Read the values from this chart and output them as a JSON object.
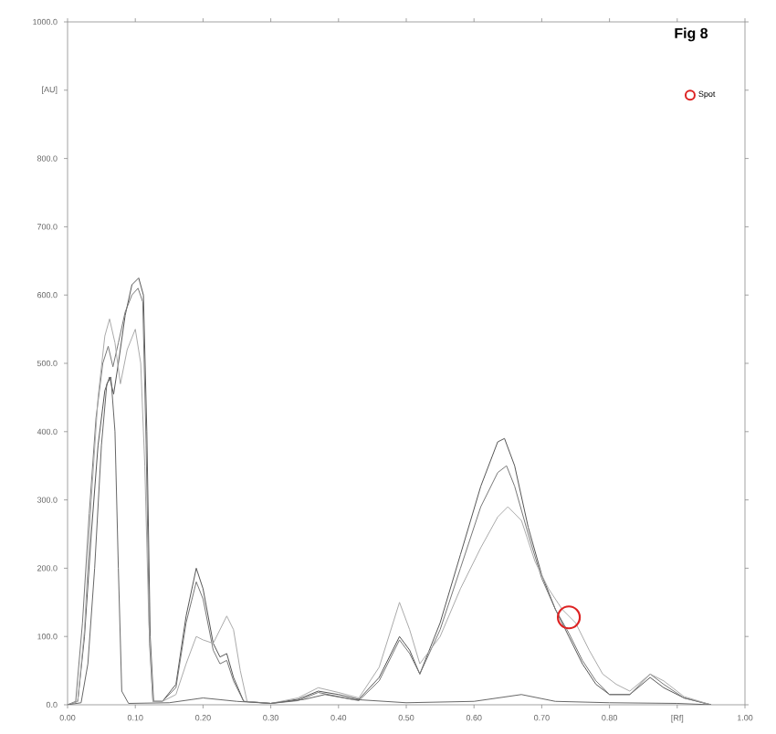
{
  "chart_data": {
    "type": "line",
    "title": "Fig 8",
    "xlim": [
      0,
      1
    ],
    "ylim": [
      0,
      1000
    ],
    "xticks": [
      {
        "value": 0,
        "label": "0.00"
      },
      {
        "value": 0.1,
        "label": "0.10"
      },
      {
        "value": 0.2,
        "label": "0.20"
      },
      {
        "value": 0.3,
        "label": "0.30"
      },
      {
        "value": 0.4,
        "label": "0.40"
      },
      {
        "value": 0.5,
        "label": "0.50"
      },
      {
        "value": 0.6,
        "label": "0.60"
      },
      {
        "value": 0.7,
        "label": "0.70"
      },
      {
        "value": 0.8,
        "label": "0.80"
      },
      {
        "value": 0.9,
        "label": "[Rf]"
      },
      {
        "value": 1,
        "label": "1.00"
      }
    ],
    "yticks": [
      {
        "value": 0,
        "label": "0.0"
      },
      {
        "value": 100,
        "label": "100.0"
      },
      {
        "value": 200,
        "label": "200.0"
      },
      {
        "value": 300,
        "label": "300.0"
      },
      {
        "value": 400,
        "label": "400.0"
      },
      {
        "value": 500,
        "label": "500.0"
      },
      {
        "value": 600,
        "label": "600.0"
      },
      {
        "value": 700,
        "label": "700.0"
      },
      {
        "value": 800,
        "label": "800.0"
      },
      {
        "value": 900,
        "label": "[AU]"
      },
      {
        "value": 1000,
        "label": "1000.0"
      }
    ],
    "legend": "top right",
    "line_style": "solid",
    "series": [
      {
        "color": "#555555",
        "x": [
          0,
          0.015,
          0.025,
          0.035,
          0.045,
          0.055,
          0.062,
          0.068,
          0.075,
          0.085,
          0.095,
          0.105,
          0.112,
          0.117,
          0.122,
          0.127,
          0.14,
          0.16,
          0.175,
          0.19,
          0.2,
          0.215,
          0.225,
          0.235,
          0.245,
          0.26,
          0.3,
          0.34,
          0.37,
          0.4,
          0.43,
          0.46,
          0.49,
          0.505,
          0.52,
          0.55,
          0.58,
          0.61,
          0.635,
          0.645,
          0.66,
          0.68,
          0.7,
          0.72,
          0.74,
          0.76,
          0.78,
          0.8,
          0.83,
          0.86,
          0.88,
          0.91,
          0.95
        ],
        "values": [
          0,
          5,
          100,
          250,
          380,
          460,
          480,
          455,
          500,
          570,
          615,
          625,
          600,
          400,
          100,
          5,
          5,
          30,
          130,
          200,
          170,
          90,
          70,
          75,
          40,
          5,
          2,
          8,
          20,
          15,
          8,
          40,
          100,
          80,
          45,
          120,
          220,
          320,
          385,
          390,
          350,
          260,
          190,
          140,
          100,
          60,
          30,
          15,
          15,
          40,
          25,
          10,
          0
        ]
      },
      {
        "color": "#777777",
        "x": [
          0,
          0.012,
          0.022,
          0.032,
          0.042,
          0.052,
          0.06,
          0.067,
          0.075,
          0.085,
          0.095,
          0.104,
          0.111,
          0.116,
          0.121,
          0.126,
          0.14,
          0.16,
          0.175,
          0.19,
          0.2,
          0.215,
          0.225,
          0.235,
          0.245,
          0.26,
          0.3,
          0.34,
          0.37,
          0.4,
          0.43,
          0.46,
          0.49,
          0.505,
          0.52,
          0.55,
          0.58,
          0.61,
          0.635,
          0.648,
          0.66,
          0.68,
          0.7,
          0.72,
          0.74,
          0.76,
          0.78,
          0.8,
          0.83,
          0.86,
          0.88,
          0.91,
          0.95
        ],
        "values": [
          0,
          5,
          120,
          280,
          420,
          500,
          525,
          495,
          530,
          575,
          600,
          610,
          590,
          380,
          90,
          5,
          5,
          25,
          120,
          180,
          155,
          80,
          60,
          65,
          35,
          5,
          2,
          6,
          18,
          12,
          6,
          35,
          95,
          75,
          45,
          110,
          200,
          290,
          340,
          350,
          320,
          250,
          185,
          140,
          105,
          65,
          35,
          15,
          15,
          45,
          30,
          10,
          0
        ]
      },
      {
        "color": "#aaaaaa",
        "x": [
          0,
          0.015,
          0.025,
          0.035,
          0.045,
          0.055,
          0.062,
          0.07,
          0.078,
          0.088,
          0.1,
          0.108,
          0.114,
          0.12,
          0.126,
          0.14,
          0.16,
          0.175,
          0.19,
          0.2,
          0.215,
          0.225,
          0.235,
          0.245,
          0.255,
          0.265,
          0.3,
          0.34,
          0.37,
          0.4,
          0.43,
          0.46,
          0.49,
          0.505,
          0.52,
          0.55,
          0.58,
          0.61,
          0.635,
          0.65,
          0.67,
          0.69,
          0.71,
          0.73,
          0.75,
          0.77,
          0.79,
          0.81,
          0.83,
          0.86,
          0.88,
          0.91,
          0.95
        ],
        "values": [
          0,
          5,
          110,
          300,
          450,
          540,
          565,
          530,
          470,
          520,
          550,
          500,
          350,
          120,
          5,
          5,
          15,
          60,
          100,
          95,
          90,
          110,
          130,
          110,
          50,
          5,
          2,
          10,
          25,
          18,
          10,
          55,
          150,
          110,
          60,
          100,
          170,
          230,
          275,
          290,
          270,
          210,
          170,
          140,
          120,
          80,
          45,
          30,
          20,
          45,
          35,
          12,
          0
        ]
      },
      {
        "color": "#666666",
        "x": [
          0,
          0.02,
          0.03,
          0.04,
          0.05,
          0.058,
          0.064,
          0.07,
          0.075,
          0.08,
          0.09,
          0.15,
          0.2,
          0.25,
          0.3,
          0.35,
          0.38,
          0.42,
          0.5,
          0.6,
          0.67,
          0.72,
          0.8,
          0.9,
          0.95
        ],
        "values": [
          0,
          3,
          60,
          200,
          380,
          470,
          480,
          400,
          200,
          20,
          2,
          3,
          10,
          5,
          2,
          8,
          15,
          8,
          3,
          5,
          15,
          5,
          3,
          2,
          0
        ]
      },
      {
        "type": "scatter",
        "name": "Spot",
        "color": "#dd2222",
        "marker": "circle",
        "x": [
          0.74
        ],
        "values": [
          128
        ]
      }
    ]
  }
}
